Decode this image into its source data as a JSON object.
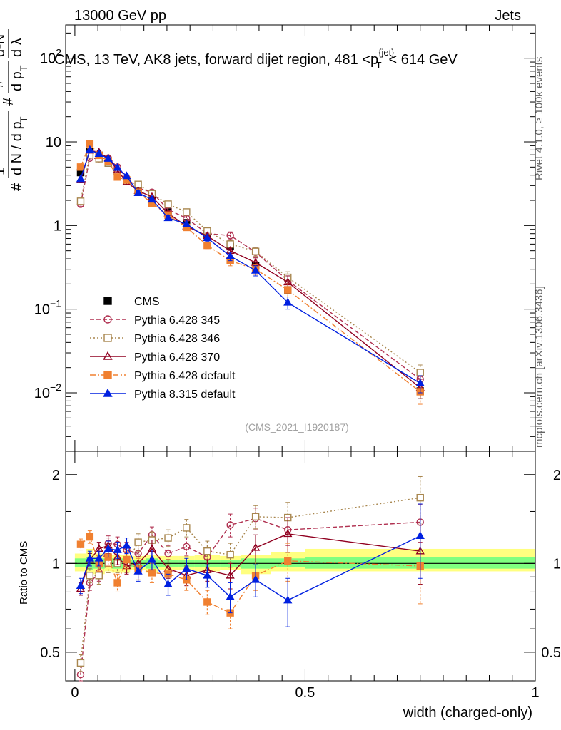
{
  "header": {
    "left": "13000 GeV pp",
    "right": "Jets"
  },
  "side_labels": {
    "rivet": "Rivet 4.1.0, ≥ 100k events",
    "mcplots": "mcplots.cern.ch [arXiv:1306.3436]"
  },
  "watermark": "(CMS_2021_I1920187)",
  "colors": {
    "CMS": "#000000",
    "p345": "#b03050",
    "p346": "#a8864e",
    "p370": "#900020",
    "p6def": "#f08030",
    "p8def": "#0020e0",
    "band_outer": "#ffff80",
    "band_inner": "#80ff80"
  },
  "chart_data": [
    {
      "id": "main",
      "type": "scatter",
      "title": "CMS, 13 TeV, AK8 jets, forward dijet region, 481 <p_T^{jet}< 614 GeV",
      "title_parts": {
        "pre": "CMS, 13 TeV, AK8 jets, forward dijet region, 481 <p",
        "sup": "{jet}",
        "sub": "T",
        "post": "< 614 GeV"
      },
      "ylabel_parts": {
        "hash1": "#",
        "one": "1",
        "dn": "d N / d p",
        "sub_t": "T",
        "hash2": "#",
        "dn2": "d N",
        "d2n": "d²N",
        "dpt": "d p",
        "dlam": "d λ"
      },
      "yscale": "log",
      "ylim": [
        0.002,
        250
      ],
      "xlim": [
        -0.02,
        1.0
      ],
      "y_ticks": [
        {
          "v": 0.01,
          "base": "10",
          "exp": "−2"
        },
        {
          "v": 0.1,
          "base": "10",
          "exp": "−1"
        },
        {
          "v": 1,
          "base": "1",
          "exp": ""
        },
        {
          "v": 10,
          "base": "10",
          "exp": ""
        },
        {
          "v": 100,
          "base": "10",
          "exp": "2"
        }
      ],
      "x": [
        0.0125,
        0.0325,
        0.0525,
        0.0725,
        0.0925,
        0.1125,
        0.1375,
        0.1675,
        0.2025,
        0.2425,
        0.2875,
        0.3375,
        0.3925,
        0.4625,
        0.75
      ],
      "series": [
        {
          "name": "CMS",
          "key": "CMS",
          "marker": "square-filled",
          "dash": "none",
          "values": [
            4.3,
            7.7,
            6.9,
            5.6,
            4.4,
            3.4,
            2.6,
            2.0,
            1.45,
            1.08,
            0.78,
            0.56,
            0.33,
            0.17,
            0.0105
          ],
          "err": [
            0.2,
            0.3,
            0.25,
            0.2,
            0.15,
            0.12,
            0.1,
            0.08,
            0.06,
            0.05,
            0.04,
            0.03,
            0.02,
            0.015,
            0.002
          ]
        },
        {
          "name": "Pythia 6.428 345",
          "key": "p345",
          "marker": "circle-open",
          "dash": "6,3",
          "values": [
            1.8,
            6.4,
            6.3,
            6.4,
            5.0,
            3.7,
            2.8,
            2.5,
            1.55,
            1.22,
            0.8,
            0.76,
            0.48,
            0.22,
            0.0145
          ],
          "err": [
            0.1,
            0.3,
            0.3,
            0.3,
            0.25,
            0.2,
            0.15,
            0.12,
            0.08,
            0.08,
            0.06,
            0.08,
            0.06,
            0.04,
            0.003
          ]
        },
        {
          "name": "Pythia 6.428 346",
          "key": "p346",
          "marker": "square-open",
          "dash": "2,3",
          "values": [
            1.95,
            7.0,
            6.3,
            5.6,
            4.4,
            3.4,
            3.1,
            2.4,
            1.8,
            1.45,
            0.86,
            0.6,
            0.49,
            0.24,
            0.0175
          ],
          "err": [
            0.1,
            0.3,
            0.3,
            0.3,
            0.2,
            0.2,
            0.15,
            0.12,
            0.1,
            0.08,
            0.06,
            0.06,
            0.06,
            0.04,
            0.004
          ]
        },
        {
          "name": "Pythia 6.428 370",
          "key": "p370",
          "marker": "triangle-open",
          "dash": "none",
          "values": [
            3.5,
            7.9,
            7.5,
            6.4,
            4.6,
            3.3,
            2.6,
            2.2,
            1.4,
            0.98,
            0.75,
            0.5,
            0.36,
            0.21,
            0.0115
          ],
          "err": [
            0.2,
            0.3,
            0.3,
            0.3,
            0.2,
            0.2,
            0.15,
            0.12,
            0.08,
            0.07,
            0.06,
            0.05,
            0.05,
            0.04,
            0.003
          ]
        },
        {
          "name": "Pythia 6.428 default",
          "key": "p6def",
          "marker": "square-filled",
          "dash": "8,3,2,3",
          "values": [
            5.0,
            9.5,
            6.9,
            5.9,
            3.8,
            3.5,
            2.5,
            1.85,
            1.33,
            0.95,
            0.58,
            0.38,
            0.3,
            0.17,
            0.0103
          ],
          "err": [
            0.3,
            0.4,
            0.3,
            0.3,
            0.2,
            0.2,
            0.15,
            0.1,
            0.08,
            0.07,
            0.05,
            0.05,
            0.04,
            0.03,
            0.003
          ]
        },
        {
          "name": "Pythia 8.315 default",
          "key": "p8def",
          "marker": "triangle-filled",
          "dash": "none",
          "values": [
            3.6,
            8.0,
            7.2,
            6.3,
            4.9,
            3.9,
            2.45,
            2.05,
            1.23,
            1.04,
            0.71,
            0.43,
            0.29,
            0.12,
            0.013
          ],
          "err": [
            0.2,
            0.4,
            0.3,
            0.3,
            0.25,
            0.2,
            0.15,
            0.12,
            0.08,
            0.07,
            0.06,
            0.05,
            0.04,
            0.02,
            0.003
          ]
        }
      ]
    },
    {
      "id": "ratio",
      "type": "scatter",
      "ylabel": "Ratio to CMS",
      "yscale": "log",
      "ylim": [
        0.4,
        2.4
      ],
      "xlabel": "width (charged-only)",
      "xlim": [
        -0.02,
        1.0
      ],
      "x_ticks": [
        {
          "v": 0,
          "label": "0"
        },
        {
          "v": 0.5,
          "label": "0.5"
        },
        {
          "v": 1,
          "label": "1"
        }
      ],
      "y_ticks": [
        {
          "v": 0.5,
          "label": "0.5"
        },
        {
          "v": 1,
          "label": "1"
        },
        {
          "v": 2,
          "label": "2"
        }
      ],
      "x": [
        0.0125,
        0.0325,
        0.0525,
        0.0725,
        0.0925,
        0.1125,
        0.1375,
        0.1675,
        0.2025,
        0.2425,
        0.2875,
        0.3375,
        0.3925,
        0.4625,
        0.75
      ],
      "band_edges": [
        0.0,
        0.025,
        0.04,
        0.065,
        0.08,
        0.105,
        0.12,
        0.155,
        0.18,
        0.225,
        0.26,
        0.315,
        0.36,
        0.425,
        0.5,
        1.0
      ],
      "band_outer": [
        [
          0.94,
          1.08
        ],
        [
          0.9,
          1.12
        ],
        [
          0.92,
          1.08
        ],
        [
          0.94,
          1.08
        ],
        [
          0.93,
          1.07
        ],
        [
          0.93,
          1.07
        ],
        [
          0.95,
          1.06
        ],
        [
          0.93,
          1.07
        ],
        [
          0.95,
          1.06
        ],
        [
          0.95,
          1.06
        ],
        [
          0.94,
          1.07
        ],
        [
          0.95,
          1.06
        ],
        [
          0.92,
          1.07
        ],
        [
          0.94,
          1.09
        ],
        [
          0.94,
          1.12
        ]
      ],
      "band_inner": [
        [
          0.97,
          1.04
        ],
        [
          0.95,
          1.05
        ],
        [
          0.96,
          1.04
        ],
        [
          0.97,
          1.04
        ],
        [
          0.96,
          1.04
        ],
        [
          0.97,
          1.03
        ],
        [
          0.97,
          1.03
        ],
        [
          0.96,
          1.04
        ],
        [
          0.97,
          1.03
        ],
        [
          0.97,
          1.03
        ],
        [
          0.97,
          1.03
        ],
        [
          0.97,
          1.03
        ],
        [
          0.96,
          1.04
        ],
        [
          0.97,
          1.04
        ],
        [
          0.96,
          1.05
        ]
      ],
      "series": [
        {
          "key": "p345",
          "marker": "circle-open",
          "dash": "6,3",
          "values": [
            0.42,
            0.86,
            0.93,
            1.17,
            1.16,
            1.11,
            1.08,
            1.25,
            1.08,
            1.14,
            1.05,
            1.35,
            1.42,
            1.3,
            1.38
          ],
          "err": [
            0.03,
            0.05,
            0.06,
            0.07,
            0.07,
            0.07,
            0.08,
            0.08,
            0.07,
            0.08,
            0.08,
            0.12,
            0.12,
            0.15,
            0.2
          ]
        },
        {
          "key": "p346",
          "marker": "square-open",
          "dash": "2,3",
          "values": [
            0.46,
            0.91,
            0.91,
            1.0,
            1.0,
            1.0,
            1.18,
            1.2,
            1.22,
            1.32,
            1.1,
            1.07,
            1.44,
            1.43,
            1.67
          ],
          "err": [
            0.03,
            0.05,
            0.06,
            0.07,
            0.07,
            0.07,
            0.08,
            0.08,
            0.08,
            0.09,
            0.09,
            0.1,
            0.13,
            0.18,
            0.3
          ]
        },
        {
          "key": "p370",
          "marker": "triangle-open",
          "dash": "none",
          "values": [
            0.82,
            1.03,
            1.12,
            1.15,
            1.05,
            0.98,
            1.0,
            1.12,
            0.96,
            0.91,
            0.95,
            0.91,
            1.13,
            1.26,
            1.1
          ],
          "err": [
            0.04,
            0.05,
            0.06,
            0.07,
            0.06,
            0.06,
            0.07,
            0.08,
            0.07,
            0.07,
            0.08,
            0.09,
            0.12,
            0.17,
            0.25
          ]
        },
        {
          "key": "p6def",
          "marker": "square-filled",
          "dash": "8,3,2,3",
          "values": [
            1.16,
            1.23,
            1.0,
            1.05,
            0.86,
            1.03,
            0.96,
            0.93,
            0.92,
            0.88,
            0.74,
            0.68,
            0.91,
            1.02,
            0.98
          ],
          "err": [
            0.05,
            0.06,
            0.06,
            0.07,
            0.06,
            0.07,
            0.08,
            0.07,
            0.07,
            0.07,
            0.07,
            0.08,
            0.1,
            0.15,
            0.25
          ]
        },
        {
          "key": "p8def",
          "marker": "triangle-filled",
          "dash": "none",
          "values": [
            0.84,
            1.04,
            1.04,
            1.12,
            1.11,
            1.15,
            0.94,
            1.03,
            0.85,
            0.96,
            0.91,
            0.77,
            0.88,
            0.75,
            1.24
          ],
          "err": [
            0.05,
            0.06,
            0.06,
            0.07,
            0.07,
            0.07,
            0.07,
            0.08,
            0.07,
            0.08,
            0.08,
            0.09,
            0.11,
            0.14,
            0.35
          ]
        }
      ]
    }
  ]
}
